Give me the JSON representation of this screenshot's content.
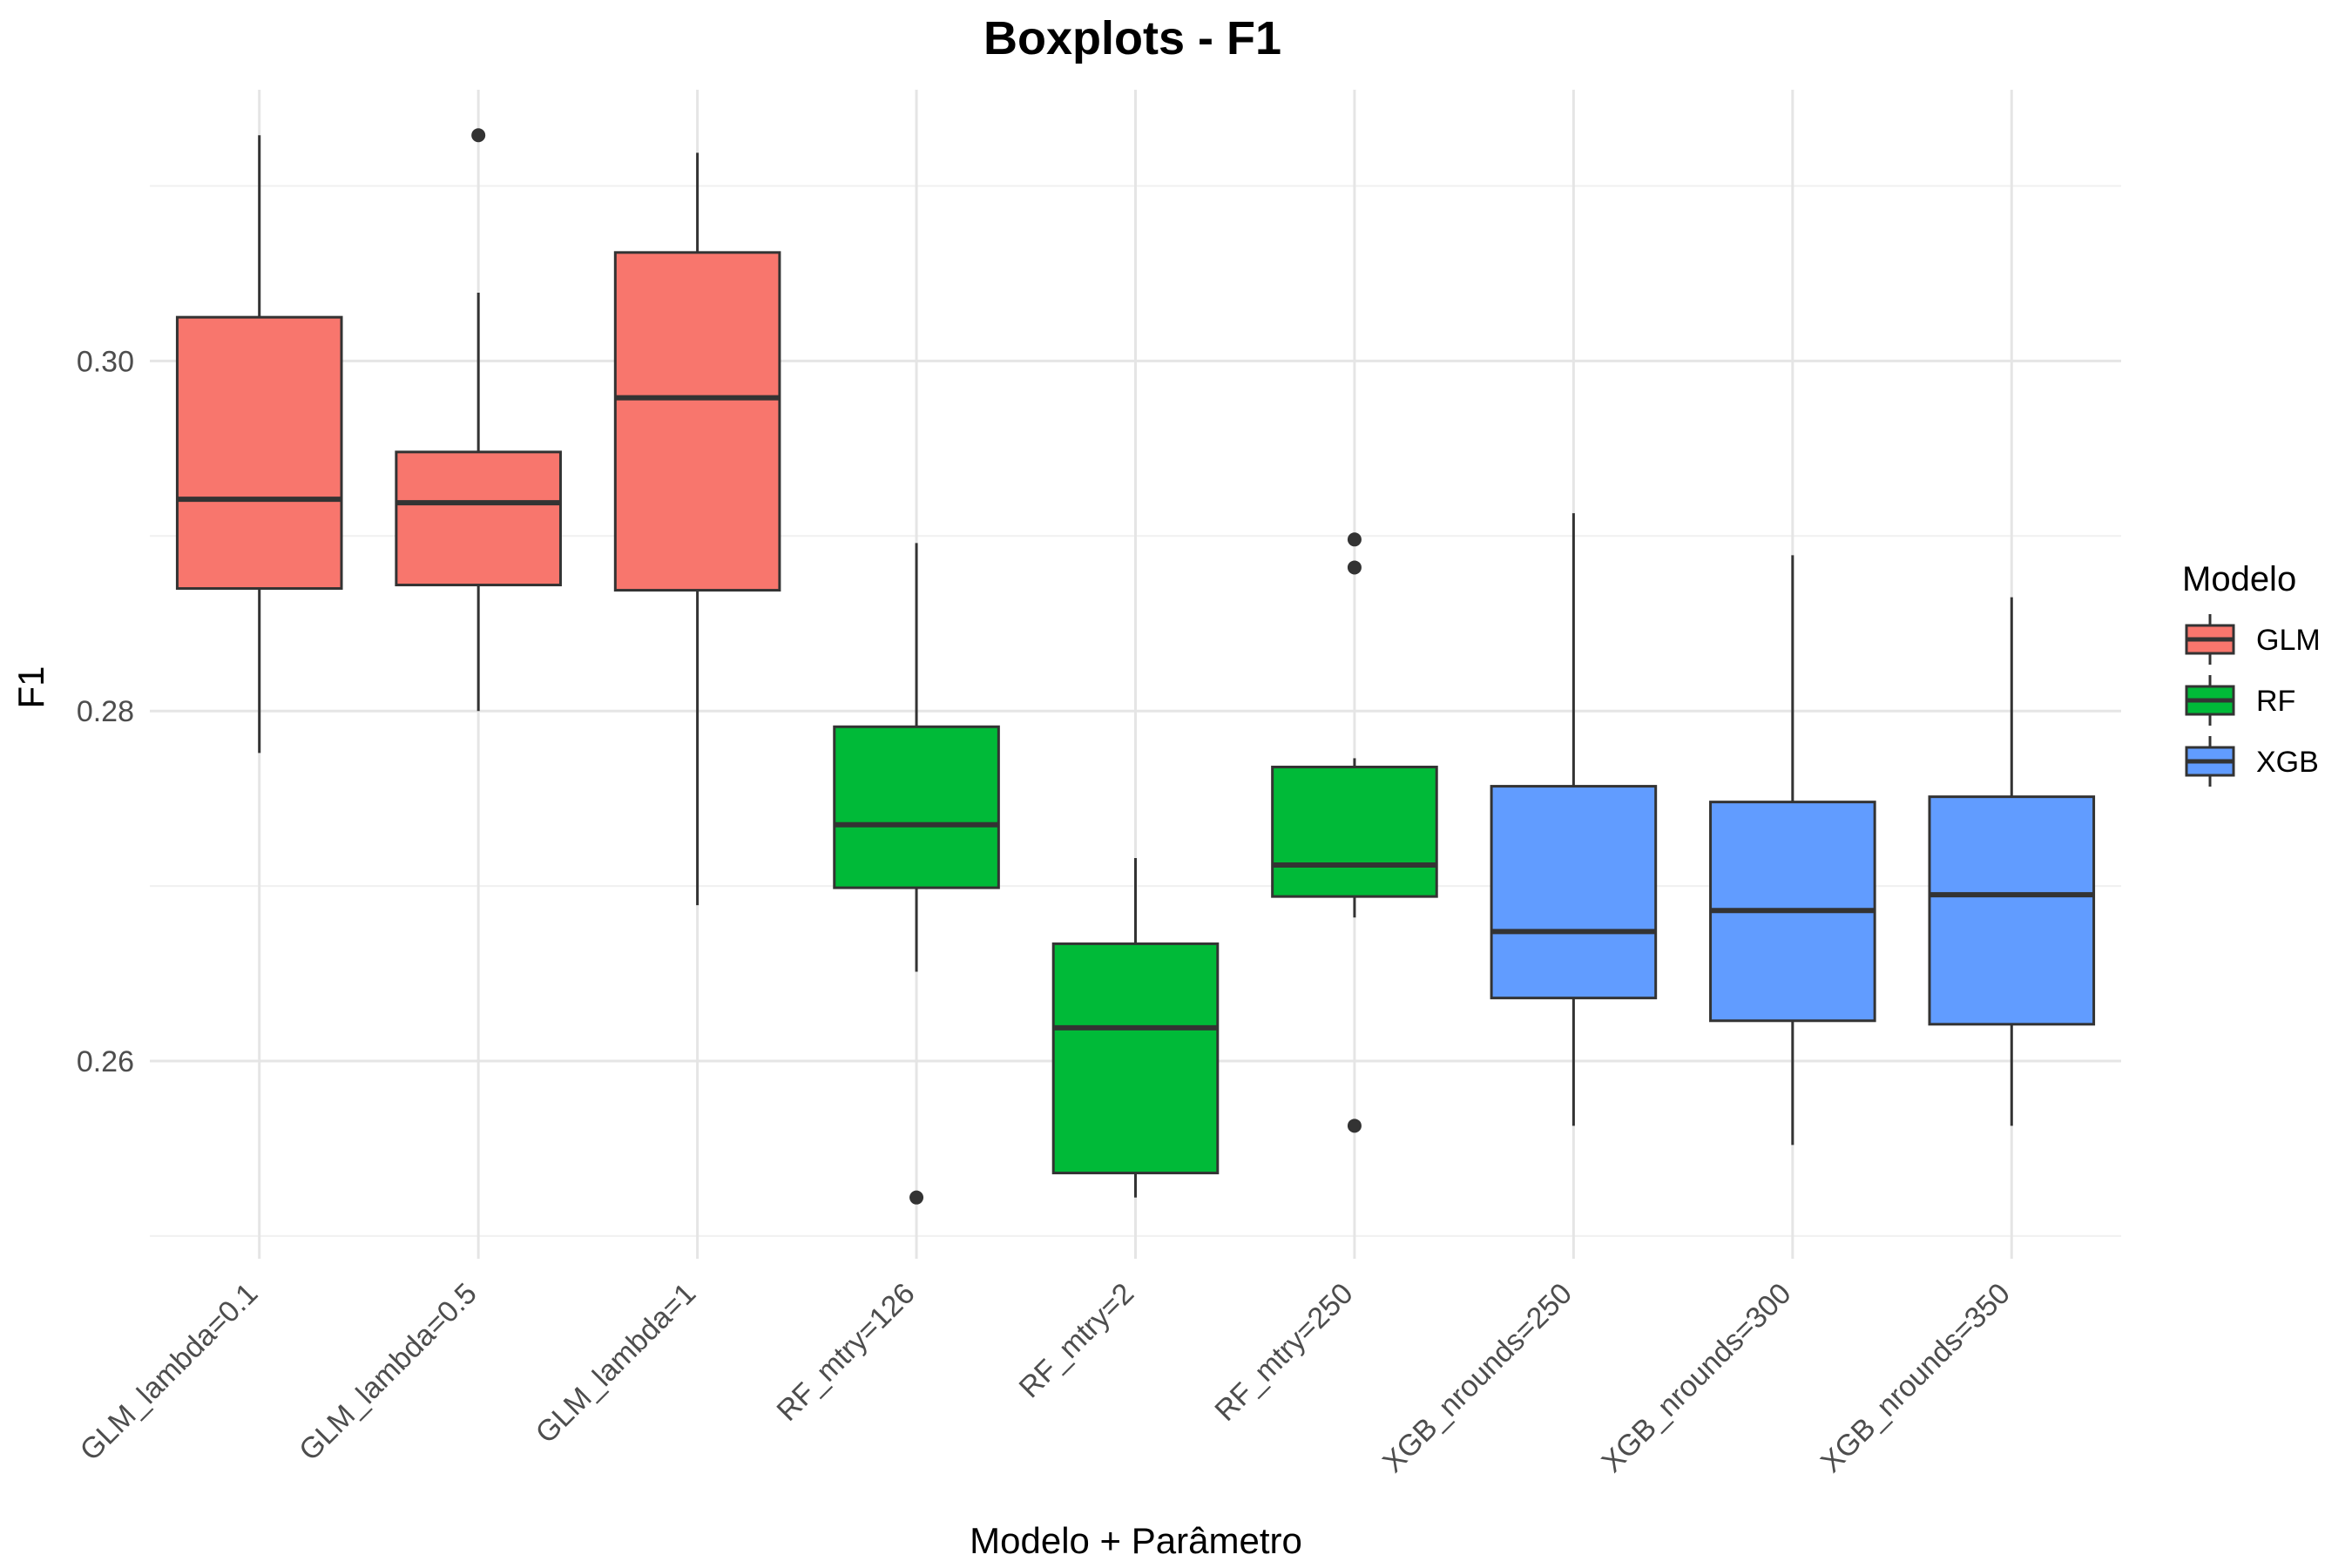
{
  "chart_data": {
    "type": "boxplot",
    "title": "Boxplots - F1",
    "xlabel": "Modelo + Parâmetro",
    "ylabel": "F1",
    "ylim": [
      0.2487,
      0.3155
    ],
    "yticks": [
      0.26,
      0.28,
      0.3
    ],
    "ytick_labels": [
      "0.26",
      "0.28",
      "0.30"
    ],
    "grid": true,
    "legend": {
      "title": "Modelo",
      "position": "right",
      "entries": [
        {
          "name": "GLM",
          "color": "#F8766D"
        },
        {
          "name": "RF",
          "color": "#00BA38"
        },
        {
          "name": "XGB",
          "color": "#619CFF"
        }
      ]
    },
    "categories": [
      "GLM_lambda=0.1",
      "GLM_lambda=0.5",
      "GLM_lambda=1",
      "RF_mtry=126",
      "RF_mtry=2",
      "RF_mtry=250",
      "XGB_nrounds=250",
      "XGB_nrounds=300",
      "XGB_nrounds=350"
    ],
    "boxes": [
      {
        "group": "GLM",
        "whisker_low": 0.2776,
        "q1": 0.287,
        "median": 0.2921,
        "q3": 0.3025,
        "whisker_high": 0.3129,
        "outliers": []
      },
      {
        "group": "GLM",
        "whisker_low": 0.28,
        "q1": 0.2872,
        "median": 0.2919,
        "q3": 0.2948,
        "whisker_high": 0.3039,
        "outliers": [
          0.3129
        ]
      },
      {
        "group": "GLM",
        "whisker_low": 0.2689,
        "q1": 0.2869,
        "median": 0.2979,
        "q3": 0.3062,
        "whisker_high": 0.3119,
        "outliers": []
      },
      {
        "group": "RF",
        "whisker_low": 0.2651,
        "q1": 0.2699,
        "median": 0.2735,
        "q3": 0.2791,
        "whisker_high": 0.2896,
        "outliers": [
          0.2522
        ]
      },
      {
        "group": "RF",
        "whisker_low": 0.2522,
        "q1": 0.2536,
        "median": 0.2619,
        "q3": 0.2667,
        "whisker_high": 0.2716,
        "outliers": []
      },
      {
        "group": "RF",
        "whisker_low": 0.2682,
        "q1": 0.2694,
        "median": 0.2712,
        "q3": 0.2768,
        "whisker_high": 0.2773,
        "outliers": [
          0.2563,
          0.2882,
          0.2898
        ]
      },
      {
        "group": "XGB",
        "whisker_low": 0.2563,
        "q1": 0.2636,
        "median": 0.2674,
        "q3": 0.2757,
        "whisker_high": 0.2913,
        "outliers": []
      },
      {
        "group": "XGB",
        "whisker_low": 0.2552,
        "q1": 0.2623,
        "median": 0.2686,
        "q3": 0.2748,
        "whisker_high": 0.2889,
        "outliers": []
      },
      {
        "group": "XGB",
        "whisker_low": 0.2563,
        "q1": 0.2621,
        "median": 0.2695,
        "q3": 0.2751,
        "whisker_high": 0.2865,
        "outliers": []
      }
    ]
  }
}
